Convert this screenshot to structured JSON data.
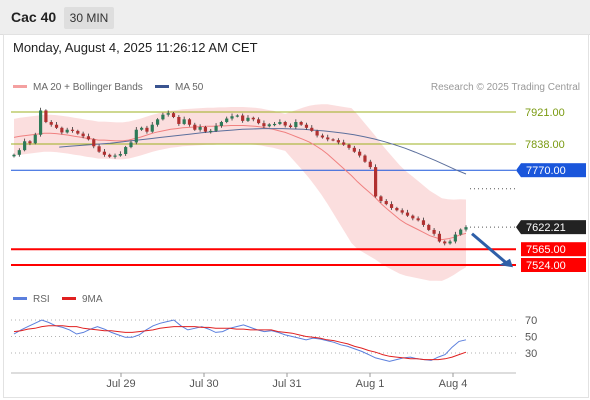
{
  "header": {
    "title": "Cac 40",
    "timeframe": "30 MIN"
  },
  "timestamp": "Monday, August 4, 2025 11:26:12 AM CET",
  "legend": {
    "ma20": "MA 20 + Bollinger Bands",
    "ma50": "MA 50",
    "rsi": "RSI",
    "ma9": "9MA"
  },
  "credit": "Research © 2025 Trading Central",
  "colors": {
    "bollinger": "#f9d0d0",
    "ma20": "#f08080",
    "ma50": "#5c6f9c",
    "bull": "#2d7a58",
    "bear": "#b03030",
    "support": "#ff0000",
    "pivot": "#1a56db",
    "target_arrow": "#2e5fa8",
    "resistance": "#9cb020",
    "rsi": "#5b7fdd",
    "rsi_ma": "#e02020"
  },
  "chart_data": [
    {
      "type": "candlestick",
      "x_ticks": [
        "Jul 29",
        "Jul 30",
        "Jul 31",
        "Aug 1",
        "Aug 4"
      ],
      "ylim": [
        7500,
        7960
      ],
      "levels": [
        {
          "value": 7921.0,
          "label": "7921.00",
          "kind": "resistance"
        },
        {
          "value": 7838.0,
          "label": "7838.00",
          "kind": "resistance"
        },
        {
          "value": 7770.0,
          "label": "7770.00",
          "kind": "pivot"
        },
        {
          "value": 7622.21,
          "label": "7622.21",
          "kind": "last"
        },
        {
          "value": 7565.0,
          "label": "7565.00",
          "kind": "support"
        },
        {
          "value": 7524.0,
          "label": "7524.00",
          "kind": "support"
        }
      ],
      "closes": [
        7810,
        7822,
        7845,
        7840,
        7862,
        7925,
        7895,
        7888,
        7880,
        7868,
        7875,
        7872,
        7865,
        7858,
        7850,
        7832,
        7818,
        7810,
        7805,
        7808,
        7812,
        7830,
        7842,
        7875,
        7880,
        7870,
        7888,
        7902,
        7914,
        7918,
        7908,
        7890,
        7902,
        7888,
        7875,
        7882,
        7870,
        7872,
        7885,
        7895,
        7904,
        7910,
        7912,
        7898,
        7906,
        7902,
        7892,
        7884,
        7889,
        7890,
        7895,
        7886,
        7882,
        7895,
        7888,
        7880,
        7872,
        7860,
        7855,
        7850,
        7848,
        7842,
        7836,
        7828,
        7818,
        7808,
        7792,
        7778,
        7702,
        7690,
        7682,
        7672,
        7666,
        7660,
        7652,
        7645,
        7640,
        7628,
        7615,
        7605,
        7585,
        7580,
        7585,
        7603,
        7616,
        7622.21
      ],
      "ma20": [
        7855,
        7858,
        7860,
        7862,
        7864,
        7866,
        7866,
        7865,
        7863,
        7861,
        7858,
        7856,
        7853,
        7851,
        7848,
        7848,
        7847,
        7846,
        7846,
        7848,
        7852,
        7856,
        7861,
        7866,
        7870,
        7873,
        7876,
        7878,
        7880,
        7881,
        7882,
        7883,
        7884,
        7884,
        7885,
        7885,
        7886,
        7886,
        7886,
        7885,
        7884,
        7882,
        7879,
        7876,
        7872,
        7868,
        7862,
        7856,
        7850,
        7843,
        7834,
        7824,
        7812,
        7798,
        7784,
        7770,
        7756,
        7740,
        7726,
        7712,
        7698,
        7682,
        7668,
        7655,
        7642,
        7632,
        7624,
        7616,
        7608,
        7600,
        7595,
        7590,
        7592,
        7596,
        7602,
        7606
      ],
      "ma50": [
        7830,
        7832,
        7834,
        7836,
        7838,
        7840,
        7843,
        7846,
        7849,
        7852,
        7855,
        7858,
        7861,
        7864,
        7867,
        7870,
        7872,
        7874,
        7876,
        7877,
        7878,
        7878,
        7878,
        7877,
        7876,
        7874,
        7872,
        7869,
        7866,
        7862,
        7857,
        7851,
        7844,
        7836,
        7827,
        7817,
        7806,
        7795,
        7783,
        7771,
        7760
      ]
    },
    {
      "type": "line",
      "title": "RSI",
      "ylim": [
        0,
        100
      ],
      "y_ticks": [
        70,
        50,
        30
      ],
      "series": [
        {
          "name": "RSI",
          "values": [
            53,
            58,
            62,
            66,
            70,
            67,
            63,
            61,
            58,
            53,
            55,
            59,
            62,
            59,
            55,
            52,
            49,
            49,
            52,
            58,
            63,
            66,
            68,
            70,
            63,
            58,
            60,
            62,
            59,
            55,
            56,
            60,
            62,
            64,
            61,
            58,
            56,
            57,
            55,
            52,
            50,
            48,
            46,
            48,
            47,
            45,
            43,
            40,
            38,
            35,
            32,
            28,
            24,
            22,
            20,
            22,
            24,
            25,
            23,
            22,
            21,
            25,
            28,
            37,
            44,
            46
          ]
        },
        {
          "name": "9MA",
          "values": [
            56,
            57,
            59,
            60,
            62,
            63,
            63,
            63,
            62,
            62,
            60,
            59,
            58,
            57,
            57,
            56,
            55,
            55,
            56,
            57,
            58,
            60,
            61,
            62,
            62,
            62,
            62,
            61,
            61,
            60,
            60,
            60,
            59,
            59,
            58,
            58,
            58,
            58,
            56,
            55,
            54,
            52,
            50,
            49,
            48,
            46,
            45,
            43,
            41,
            38,
            36,
            33,
            31,
            28,
            26,
            25,
            24,
            23,
            23,
            22,
            22,
            22,
            23,
            25,
            28,
            31
          ]
        }
      ]
    }
  ]
}
